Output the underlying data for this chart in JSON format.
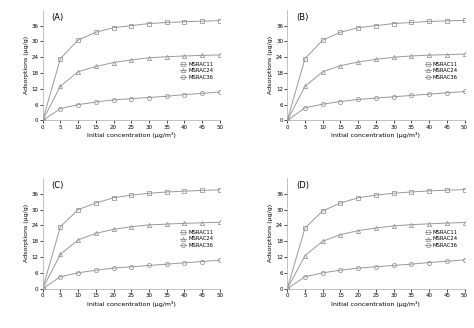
{
  "panels": [
    "(A)",
    "(B)",
    "(C)",
    "(D)"
  ],
  "x": [
    0,
    5,
    10,
    15,
    20,
    25,
    30,
    35,
    40,
    45,
    50
  ],
  "series": {
    "MSRAC11": {
      "marker": "s",
      "color": "#999999",
      "fillstyle": "none",
      "A": [
        0,
        23.5,
        30.5,
        33.5,
        35.2,
        36.0,
        36.8,
        37.2,
        37.5,
        37.7,
        37.9
      ],
      "B": [
        0,
        23.5,
        30.5,
        33.5,
        35.2,
        36.0,
        36.8,
        37.2,
        37.6,
        37.8,
        38.0
      ],
      "C": [
        0,
        23.5,
        30.0,
        32.5,
        34.5,
        35.5,
        36.2,
        36.7,
        37.0,
        37.3,
        37.5
      ],
      "D": [
        0,
        23.0,
        29.5,
        32.5,
        34.5,
        35.5,
        36.2,
        36.7,
        37.1,
        37.4,
        37.6
      ]
    },
    "MSRAC24": {
      "marker": "^",
      "color": "#999999",
      "fillstyle": "none",
      "A": [
        0,
        13.0,
        18.5,
        20.5,
        22.0,
        23.0,
        23.8,
        24.2,
        24.5,
        24.7,
        24.9
      ],
      "B": [
        0,
        13.0,
        18.5,
        20.8,
        22.2,
        23.2,
        24.0,
        24.5,
        24.8,
        25.0,
        25.2
      ],
      "C": [
        0,
        13.0,
        18.5,
        21.0,
        22.5,
        23.5,
        24.2,
        24.5,
        24.8,
        25.0,
        25.2
      ],
      "D": [
        0,
        12.5,
        18.0,
        20.5,
        22.0,
        23.0,
        23.8,
        24.3,
        24.6,
        24.9,
        25.1
      ]
    },
    "MSRAC36": {
      "marker": "o",
      "color": "#999999",
      "fillstyle": "none",
      "A": [
        0,
        4.5,
        6.0,
        7.0,
        7.8,
        8.3,
        8.7,
        9.2,
        9.8,
        10.3,
        10.8
      ],
      "B": [
        0,
        4.8,
        6.2,
        7.2,
        8.0,
        8.5,
        9.0,
        9.5,
        10.0,
        10.5,
        11.0
      ],
      "C": [
        0,
        4.5,
        6.0,
        7.0,
        7.8,
        8.3,
        8.8,
        9.3,
        9.8,
        10.3,
        10.8
      ],
      "D": [
        0,
        4.5,
        6.0,
        7.0,
        7.8,
        8.3,
        8.8,
        9.3,
        9.9,
        10.4,
        10.9
      ]
    }
  },
  "xlabel": "Initial concentration (μg/m³)",
  "ylabel": "Adsorptions (μg/g)",
  "ylim": [
    0,
    42
  ],
  "yticks": [
    0,
    6,
    12,
    18,
    24,
    30,
    36
  ],
  "xticks": [
    0,
    5,
    10,
    15,
    20,
    25,
    30,
    35,
    40,
    45,
    50
  ],
  "legend_order": [
    "MSRAC11",
    "MSRAC24",
    "MSRAC36"
  ],
  "background_color": "#ffffff",
  "markersize": 3,
  "linewidth": 0.7
}
